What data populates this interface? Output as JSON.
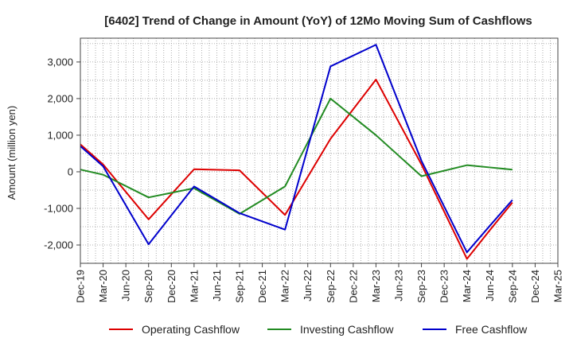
{
  "chart_data": {
    "type": "line",
    "title": "[6402]  Trend of Change in Amount (YoY) of 12Mo Moving Sum of Cashflows",
    "xlabel": "",
    "ylabel": "Amount (million yen)",
    "ylim": [
      -2500,
      3650
    ],
    "yticks": [
      -2000,
      -1000,
      0,
      1000,
      2000,
      3000
    ],
    "ytick_labels": [
      "-2,000",
      "-1,000",
      "0",
      "1,000",
      "2,000",
      "3,000"
    ],
    "categories": [
      "Dec-19",
      "Mar-20",
      "Jun-20",
      "Sep-20",
      "Dec-20",
      "Mar-21",
      "Jun-21",
      "Sep-21",
      "Dec-21",
      "Mar-22",
      "Jun-22",
      "Sep-22",
      "Dec-22",
      "Mar-23",
      "Jun-23",
      "Sep-23",
      "Dec-23",
      "Mar-24",
      "Jun-24",
      "Sep-24",
      "Dec-24",
      "Mar-25"
    ],
    "x": [
      "Dec-19",
      "Mar-20",
      "Sep-20",
      "Mar-21",
      "Sep-21",
      "Mar-22",
      "Sep-22",
      "Mar-23",
      "Sep-23",
      "Mar-24",
      "Jun-24",
      "Sep-24"
    ],
    "series": [
      {
        "name": "Operating Cashflow",
        "color": "#dd0000",
        "values": [
          750,
          200,
          -1300,
          70,
          40,
          -1180,
          900,
          2520,
          200,
          -2380,
          -1600,
          -840
        ]
      },
      {
        "name": "Investing Cashflow",
        "color": "#228b22",
        "values": [
          60,
          -80,
          -700,
          -450,
          -1150,
          -400,
          2000,
          1000,
          -120,
          180,
          120,
          60
        ]
      },
      {
        "name": "Free Cashflow",
        "color": "#0000cc",
        "values": [
          700,
          150,
          -1980,
          -400,
          -1130,
          -1580,
          2880,
          3470,
          300,
          -2200,
          -1480,
          -770
        ]
      }
    ],
    "grid": true,
    "legend_position": "bottom"
  }
}
